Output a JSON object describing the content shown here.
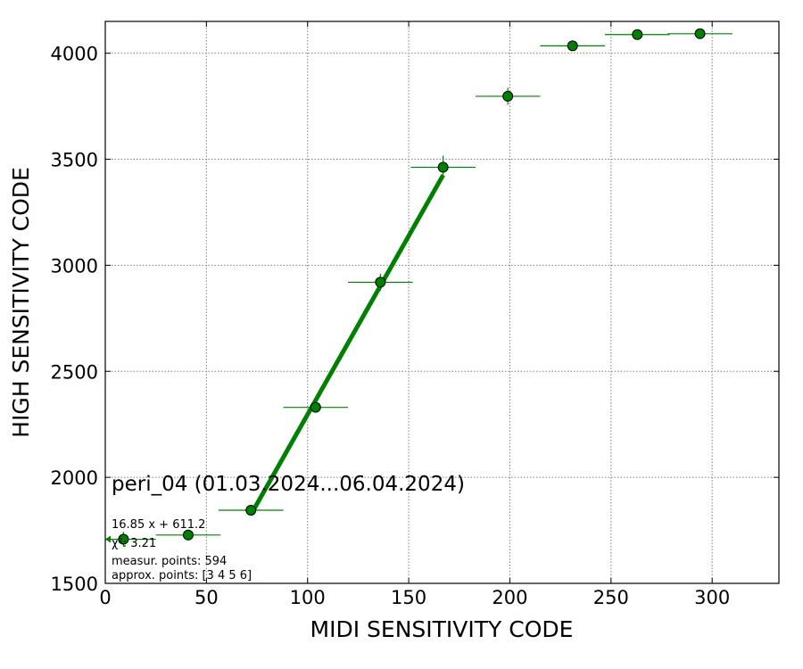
{
  "chart_data": {
    "type": "scatter",
    "xlabel": "MIDI SENSITIVITY CODE",
    "ylabel": "HIGH SENSITIVITY CODE",
    "xlim": [
      0,
      333
    ],
    "ylim": [
      1500,
      4150
    ],
    "x_ticks": [
      0,
      50,
      100,
      150,
      200,
      250,
      300
    ],
    "y_ticks": [
      1500,
      2000,
      2500,
      3000,
      3500,
      4000
    ],
    "grid": true,
    "colors": {
      "marker": "#008000",
      "fit": "#008000",
      "grid": "#808080"
    },
    "points": [
      {
        "x": 9,
        "y": 1708,
        "xerr": 16,
        "yerr": 35
      },
      {
        "x": 41,
        "y": 1728,
        "xerr": 16,
        "yerr": 25
      },
      {
        "x": 72,
        "y": 1845,
        "xerr": 16,
        "yerr": 10
      },
      {
        "x": 104,
        "y": 2330,
        "xerr": 16,
        "yerr": 20
      },
      {
        "x": 136,
        "y": 2920,
        "xerr": 16,
        "yerr": 40
      },
      {
        "x": 167,
        "y": 3462,
        "xerr": 16,
        "yerr": 55
      },
      {
        "x": 199,
        "y": 3797,
        "xerr": 16,
        "yerr": 40
      },
      {
        "x": 231,
        "y": 4035,
        "xerr": 16,
        "yerr": 5
      },
      {
        "x": 263,
        "y": 4088,
        "xerr": 16,
        "yerr": 5
      },
      {
        "x": 294,
        "y": 4092,
        "xerr": 16,
        "yerr": 5
      }
    ],
    "fit": {
      "slope": 16.85,
      "intercept": 611.2,
      "x_range": [
        72,
        167
      ]
    },
    "annotations": {
      "title": "peri_04 (01.03.2024...06.04.2024)",
      "fit_formula": "16.85 x + 611.2",
      "chi2": "χ²: 3.21",
      "measured": "measur. points: 594",
      "approx": "approx. points: [3 4 5 6]"
    }
  }
}
